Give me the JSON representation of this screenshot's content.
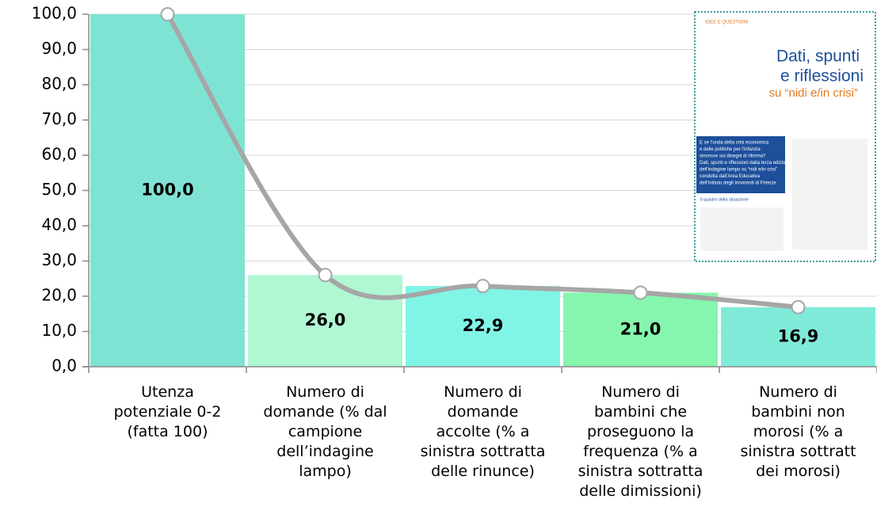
{
  "chart_data": {
    "type": "bar",
    "categories": [
      "Utenza\npotenziale 0-2\n(fatta 100)",
      "Numero di\ndomande (% dal\ncampione\ndell’indagine\nlampo)",
      "Numero di\ndomande\naccolte (% a\nsinistra sottratta\ndelle rinunce)",
      "Numero di\nbambini che\nproseguono la\nfrequenza (% a\nsinistra sottratta\ndelle dimissioni)",
      "Numero di\nbambini non\nmorosi (% a\nsinistra sottratt\ndei morosi)"
    ],
    "values": [
      100.0,
      26.0,
      22.9,
      21.0,
      16.9
    ],
    "value_labels": [
      "100,0",
      "26,0",
      "22,9",
      "21,0",
      "16,9"
    ],
    "colors": [
      "#7fe3d3",
      "#b0f7d4",
      "#80f5e6",
      "#86f5ad",
      "#80ead9"
    ],
    "line_color": "#a6a6a6",
    "ylim": [
      0,
      100
    ],
    "yticks": [
      {
        "value": 0,
        "label": "0,0"
      },
      {
        "value": 10,
        "label": "10,0"
      },
      {
        "value": 20,
        "label": "20,0"
      },
      {
        "value": 30,
        "label": "30,0"
      },
      {
        "value": 40,
        "label": "40,0"
      },
      {
        "value": 50,
        "label": "50,0"
      },
      {
        "value": 60,
        "label": "60,0"
      },
      {
        "value": 70,
        "label": "70,0"
      },
      {
        "value": 80,
        "label": "80,0"
      },
      {
        "value": 90,
        "label": "90,0"
      },
      {
        "value": 100,
        "label": "100,0"
      }
    ],
    "grid": true
  },
  "inset": {
    "section": "IDEE E QUESTIONI",
    "title": [
      "Dati, spunti",
      "e riflessioni"
    ],
    "subtitle": "su “nidi e/in crisi”",
    "box": [
      "E se l’onda della crisi economica",
      "e delle politiche per l’infanzia",
      "vincesse sui disegni di riforma?",
      "Dati, spunti e riflessioni dalla terza edizione",
      "dell’indagine lampo su “nidi e/in crisi”",
      "condotta dall’Area Educativa",
      "dell’Istituto degli Innocenti di Firenze"
    ],
    "heading": "Il quadro della situazione"
  }
}
